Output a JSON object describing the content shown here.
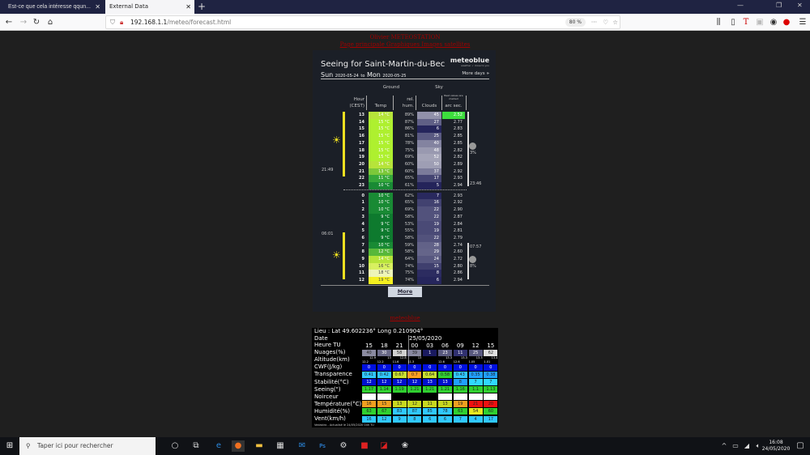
{
  "browser": {
    "tabs": [
      {
        "label": "Est-ce que cela intéresse qqun..."
      },
      {
        "label": "External Data",
        "active": true
      }
    ],
    "url_host": "192.168.1.1",
    "url_path": "/meteo/forecast.html",
    "zoom": "80 %",
    "window_controls": [
      "minimize",
      "restore",
      "close"
    ]
  },
  "page": {
    "header_title": "Olivier METEOSTATION",
    "header_links": "Page principale Graphiques Images satellites",
    "meteoblue_link": "meteoblue"
  },
  "widget": {
    "title": "Seeing for Saint-Martin-du-Bec",
    "logo": "meteoblue",
    "logo_sub": "weather ✓ close to you",
    "day1": "Sun",
    "date1": "2020-05-24",
    "to": "to",
    "day2": "Mon",
    "date2": "2020-05-25",
    "more_days": "More days",
    "group_ground": "Ground",
    "group_sky": "Sky",
    "col_hour": "Hour",
    "col_hour2": "(CEST)",
    "col_temp": "Temp",
    "col_rel": "rel.",
    "col_hum": "hum.",
    "col_clouds": "Clouds",
    "col_best": "Best values are marked",
    "col_arc": "arc sec.",
    "sunset": "21:49",
    "sunrise": "06:01",
    "moonset": "23:46",
    "moonrise": "07:57",
    "moon1_pct": "3%",
    "moon2_pct": "8%",
    "more_button": "More",
    "rows": [
      {
        "hour": "13",
        "temp": 14,
        "hum": 89,
        "clouds": 45,
        "seeing": "2.52",
        "best": true
      },
      {
        "hour": "14",
        "temp": 15,
        "hum": 87,
        "clouds": 27,
        "seeing": "2.77"
      },
      {
        "hour": "15",
        "temp": 15,
        "hum": 86,
        "clouds": 6,
        "seeing": "2.83"
      },
      {
        "hour": "16",
        "temp": 15,
        "hum": 81,
        "clouds": 25,
        "seeing": "2.85"
      },
      {
        "hour": "17",
        "temp": 15,
        "hum": 78,
        "clouds": 40,
        "seeing": "2.85"
      },
      {
        "hour": "18",
        "temp": 15,
        "hum": 75,
        "clouds": 48,
        "seeing": "2.82"
      },
      {
        "hour": "19",
        "temp": 15,
        "hum": 69,
        "clouds": 52,
        "seeing": "2.82"
      },
      {
        "hour": "20",
        "temp": 14,
        "hum": 60,
        "clouds": 50,
        "seeing": "2.89"
      },
      {
        "hour": "21",
        "temp": 13,
        "hum": 60,
        "clouds": 37,
        "seeing": "2.92"
      },
      {
        "hour": "22",
        "temp": 11,
        "hum": 65,
        "clouds": 17,
        "seeing": "2.93"
      },
      {
        "hour": "23",
        "temp": 10,
        "hum": 61,
        "clouds": 5,
        "seeing": "2.94"
      },
      {
        "hour": "0",
        "temp": 10,
        "hum": 62,
        "clouds": 7,
        "seeing": "2.93"
      },
      {
        "hour": "1",
        "temp": 10,
        "hum": 65,
        "clouds": 16,
        "seeing": "2.92"
      },
      {
        "hour": "2",
        "temp": 10,
        "hum": 69,
        "clouds": 22,
        "seeing": "2.90"
      },
      {
        "hour": "3",
        "temp": 9,
        "hum": 58,
        "clouds": 22,
        "seeing": "2.87"
      },
      {
        "hour": "4",
        "temp": 9,
        "hum": 53,
        "clouds": 19,
        "seeing": "2.84"
      },
      {
        "hour": "5",
        "temp": 9,
        "hum": 55,
        "clouds": 19,
        "seeing": "2.81"
      },
      {
        "hour": "6",
        "temp": 9,
        "hum": 58,
        "clouds": 22,
        "seeing": "2.79"
      },
      {
        "hour": "7",
        "temp": 10,
        "hum": 59,
        "clouds": 28,
        "seeing": "2.74"
      },
      {
        "hour": "8",
        "temp": 12,
        "hum": 58,
        "clouds": 29,
        "seeing": "2.60"
      },
      {
        "hour": "9",
        "temp": 14,
        "hum": 64,
        "clouds": 24,
        "seeing": "2.72"
      },
      {
        "hour": "10",
        "temp": 16,
        "hum": 74,
        "clouds": 15,
        "seeing": "2.80"
      },
      {
        "hour": "11",
        "temp": 18,
        "hum": 75,
        "clouds": 8,
        "seeing": "2.86"
      },
      {
        "hour": "12",
        "temp": 19,
        "hum": 74,
        "clouds": 6,
        "seeing": "2.94"
      }
    ]
  },
  "astro": {
    "location": "Lieu : Lat 49.602236°   Long 0.210904°",
    "date_label": "Date",
    "date_value": "25/05/2020",
    "footer": "Vedastro - Actualisé le 24/05/2020 04h TU",
    "rows": [
      {
        "label": "Heure TU",
        "plain": true,
        "cells": [
          "15",
          "18",
          "21",
          "00",
          "03",
          "06",
          "09",
          "12",
          "15"
        ]
      },
      {
        "label": "Nuages(%)",
        "cells": [
          "40",
          "30",
          "58",
          "39",
          "1",
          "23",
          "11",
          "25",
          "62"
        ],
        "colors": [
          "#8a8aa0",
          "#6a6a88",
          "#d0d0d0",
          "#8888a0",
          "#1a1a60",
          "#5a5a80",
          "#303070",
          "#5a5a80",
          "#e0e0e0"
        ]
      },
      {
        "label": "Altitude(km)",
        "alt": true,
        "cells": [
          [
            "12.9",
            "12.2"
          ],
          [
            "13",
            "12.2"
          ],
          [
            "12.8",
            "11.6"
          ],
          [
            "13",
            "11.3"
          ],
          [
            "",
            ""
          ],
          [
            "13.3",
            "12.6"
          ],
          [
            "13.3",
            "12.6"
          ],
          [
            "13.3",
            "1.05"
          ],
          [
            "13.4",
            "1.01"
          ]
        ]
      },
      {
        "label": "CWF(J/kg)",
        "cells": [
          "0",
          "0",
          "0",
          "0",
          "0",
          "0",
          "0",
          "0",
          "0"
        ],
        "colors": [
          "#0010e0",
          "#0010e0",
          "#0010e0",
          "#0010e0",
          "#0010e0",
          "#0010e0",
          "#0010e0",
          "#0010e0",
          "#0010e0"
        ]
      },
      {
        "label": "Transparence",
        "cells": [
          "0.41",
          "0.42",
          "0.67",
          "0.7",
          "0.64",
          "0.58",
          "0.43",
          "0.35",
          "0.38"
        ],
        "colors": [
          "#30c8ff",
          "#30c8ff",
          "#c8e030",
          "#ffa020",
          "#c8e030",
          "#30d030",
          "#30c8ff",
          "#20a0ff",
          "#20a0ff"
        ]
      },
      {
        "label": "Stabilité(°C)",
        "cells": [
          "12",
          "12",
          "12",
          "12",
          "13",
          "13",
          "8",
          "7",
          "7"
        ],
        "colors": [
          "#0010d0",
          "#0010d0",
          "#0010d0",
          "#0010d0",
          "#0010d0",
          "#0010d0",
          "#20a0ff",
          "#30d8ff",
          "#30d8ff"
        ]
      },
      {
        "label": "Seeing(\")",
        "cells": [
          "1.17",
          "1.14",
          "1.19",
          "1.21",
          "1.21",
          "1.21",
          "1.16",
          "1.1",
          "1.13"
        ],
        "colors": [
          "#30d030",
          "#30d030",
          "#30d030",
          "#30d030",
          "#30d030",
          "#30d030",
          "#30d030",
          "#30d030",
          "#30d030"
        ]
      },
      {
        "label": "Noirceur",
        "cells": [
          "",
          "",
          "",
          "",
          "",
          "",
          "",
          "",
          ""
        ],
        "colors": [
          "#ffffff",
          "#ffffff",
          "#000000",
          "#000000",
          "#000000",
          "#ffffff",
          "#ffffff",
          "#ffffff",
          "#ffffff"
        ]
      },
      {
        "label": "Température(°C)",
        "cells": [
          "16",
          "15",
          "13",
          "12",
          "11",
          "13",
          "19",
          "21",
          "20"
        ],
        "colors": [
          "#f0a020",
          "#f0a020",
          "#c8d820",
          "#c8d820",
          "#c8d820",
          "#c8d820",
          "#f0a020",
          "#f01010",
          "#f01010"
        ]
      },
      {
        "label": "Humidité(%)",
        "cells": [
          "63",
          "67",
          "83",
          "87",
          "85",
          "78",
          "63",
          "54",
          "60"
        ],
        "colors": [
          "#30d030",
          "#30d030",
          "#30c8ff",
          "#30c8ff",
          "#30c8ff",
          "#30c8ff",
          "#30d030",
          "#e8e820",
          "#30d030"
        ]
      },
      {
        "label": "Vent(km/h)",
        "cells": [
          "16",
          "12",
          "9",
          "8",
          "6",
          "6",
          "7",
          "4",
          "17"
        ],
        "colors": [
          "#30c8ff",
          "#30c8ff",
          "#30c8ff",
          "#30c8ff",
          "#30c8ff",
          "#30c8ff",
          "#30c8ff",
          "#30c8ff",
          "#30c8ff"
        ]
      }
    ]
  },
  "taskbar": {
    "search_placeholder": "Taper ici pour rechercher",
    "time": "16:08",
    "date": "24/05/2020"
  }
}
